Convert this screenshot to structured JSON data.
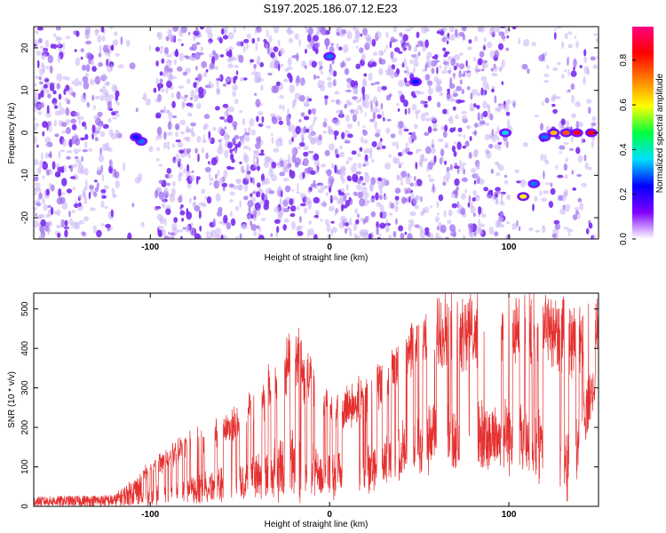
{
  "title": "S197.2025.186.07.12.E23",
  "chart_data": [
    {
      "type": "heatmap",
      "xlabel": "Height of straight line (km)",
      "ylabel": "Frequency (Hz)",
      "xlim": [
        -165,
        150
      ],
      "ylim": [
        -25,
        25
      ],
      "xticks": [
        -100,
        0,
        100
      ],
      "yticks": [
        -20,
        -10,
        0,
        10,
        20
      ],
      "colorbar": {
        "label": "Normalized spectral amplitude",
        "range": [
          0,
          0.95
        ],
        "ticks": [
          0.0,
          0.2,
          0.4,
          0.6,
          0.8
        ],
        "colors": [
          "#ffffff",
          "#8000ff",
          "#0000ff",
          "#00e0ff",
          "#00ff40",
          "#ffff00",
          "#ff8000",
          "#ff0000",
          "#ff0080"
        ]
      },
      "features": [
        {
          "x": -105,
          "y": -2,
          "amplitude": 0.3
        },
        {
          "x": -108,
          "y": -1,
          "amplitude": 0.25
        },
        {
          "x": 0,
          "y": 18,
          "amplitude": 0.3
        },
        {
          "x": 48,
          "y": 12,
          "amplitude": 0.25
        },
        {
          "x": 98,
          "y": 0,
          "amplitude": 0.35
        },
        {
          "x": 108,
          "y": -15,
          "amplitude": 0.6
        },
        {
          "x": 114,
          "y": -12,
          "amplitude": 0.3
        },
        {
          "x": 120,
          "y": -1,
          "amplitude": 0.3
        },
        {
          "x": 125,
          "y": 0,
          "amplitude": 0.65
        },
        {
          "x": 132,
          "y": 0,
          "amplitude": 0.75
        },
        {
          "x": 138,
          "y": 0,
          "amplitude": 0.85
        },
        {
          "x": 146,
          "y": 0,
          "amplitude": 0.85
        }
      ]
    },
    {
      "type": "line",
      "xlabel": "Height of straight line (km)",
      "ylabel": "SNR (10 * v/v)",
      "xlim": [
        -165,
        150
      ],
      "ylim": [
        0,
        540
      ],
      "xticks": [
        -100,
        0,
        100
      ],
      "yticks": [
        0,
        100,
        200,
        300,
        400,
        500
      ],
      "color": "#e53030",
      "envelope": [
        {
          "x": -165,
          "low": 0,
          "high": 25
        },
        {
          "x": -120,
          "low": 0,
          "high": 30
        },
        {
          "x": -100,
          "low": 5,
          "high": 110
        },
        {
          "x": -80,
          "low": 10,
          "high": 180
        },
        {
          "x": -60,
          "low": 20,
          "high": 220
        },
        {
          "x": -40,
          "low": 25,
          "high": 300
        },
        {
          "x": -20,
          "low": 30,
          "high": 460
        },
        {
          "x": 0,
          "low": 30,
          "high": 280
        },
        {
          "x": 20,
          "low": 40,
          "high": 320
        },
        {
          "x": 40,
          "low": 80,
          "high": 420
        },
        {
          "x": 60,
          "low": 100,
          "high": 530
        },
        {
          "x": 80,
          "low": 100,
          "high": 525
        },
        {
          "x": 100,
          "low": 100,
          "high": 520
        },
        {
          "x": 120,
          "low": 60,
          "high": 530
        },
        {
          "x": 135,
          "low": 40,
          "high": 490
        },
        {
          "x": 150,
          "low": 300,
          "high": 535
        }
      ]
    }
  ]
}
